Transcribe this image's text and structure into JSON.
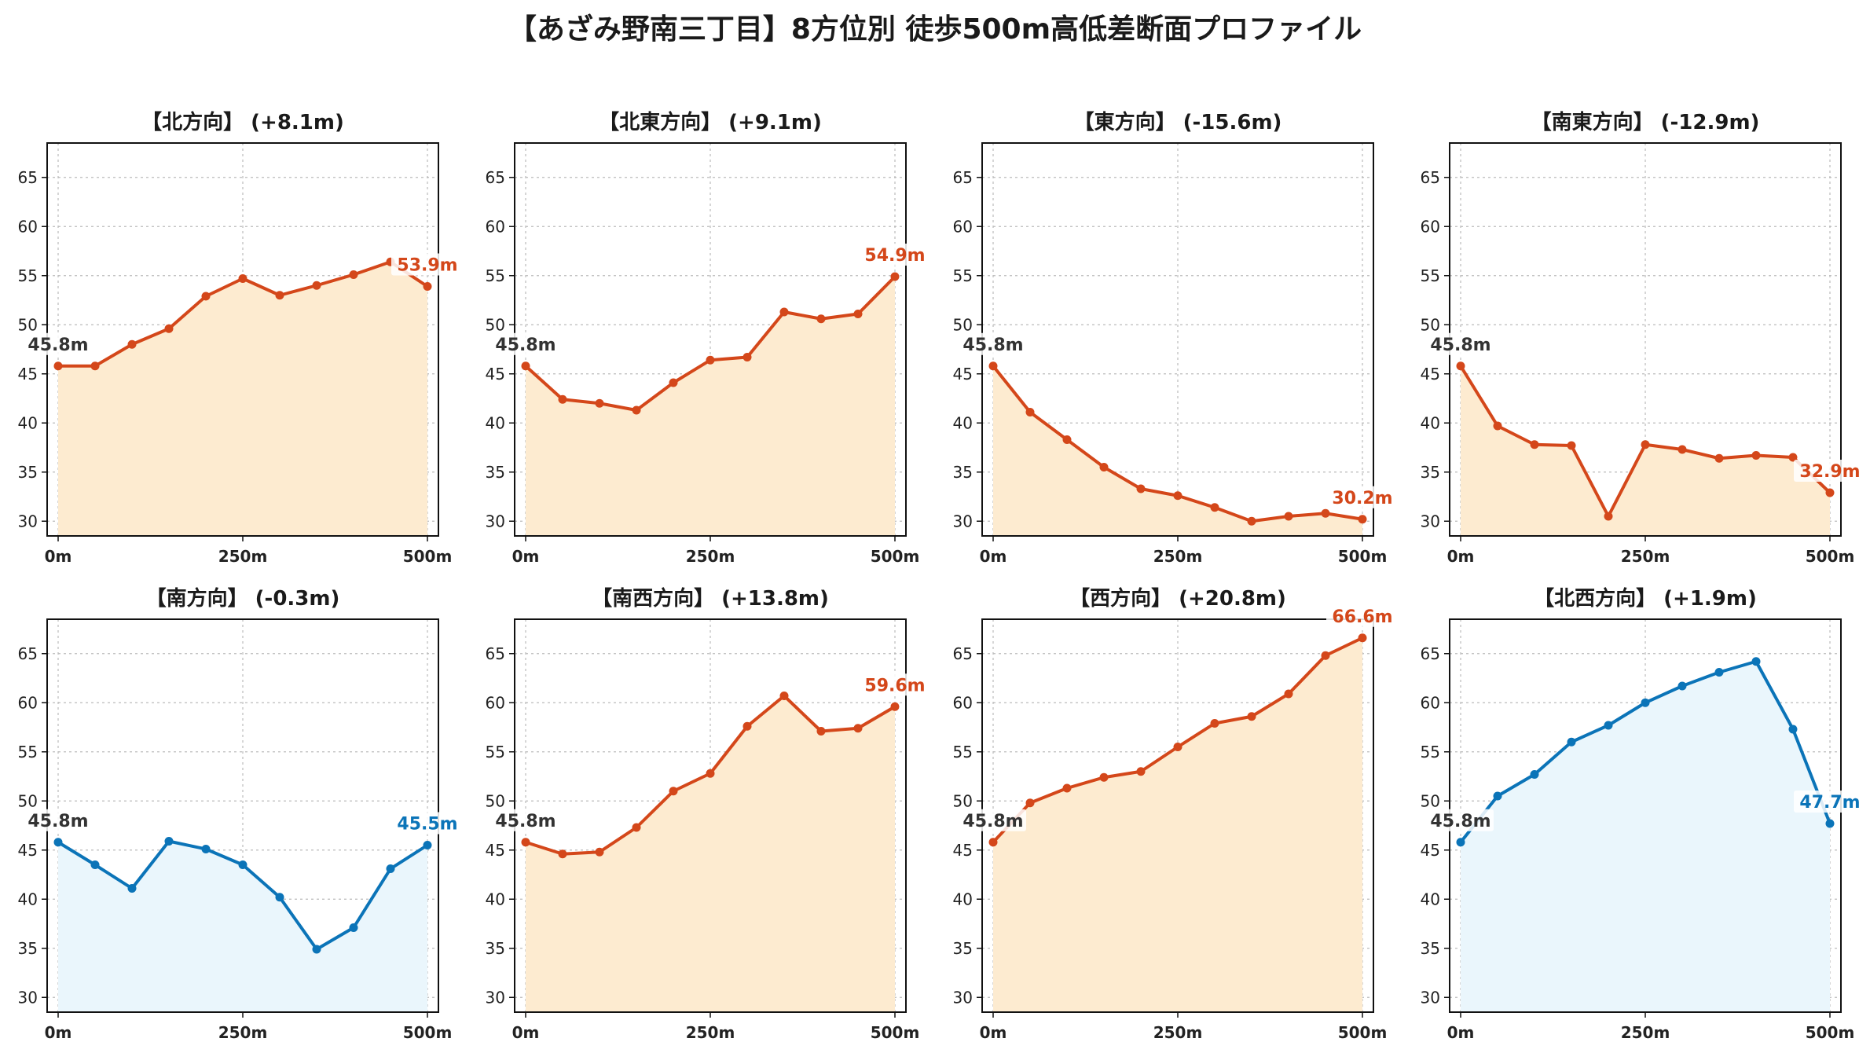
{
  "title": "【あざみ野南三丁目】8方位別 徒歩500m高低差断面プロファイル",
  "colors": {
    "up_line": "#d4471a",
    "up_fill": "#fdebd0",
    "down_line": "#0b74b8",
    "down_fill": "#eaf6fc",
    "start_label": "#333333",
    "grid": "#bbbbbb"
  },
  "chart_data": [
    {
      "type": "area",
      "title": "【北方向】 (+8.1m)",
      "theme": "up",
      "x": [
        0,
        50,
        100,
        150,
        200,
        250,
        300,
        350,
        400,
        450,
        500
      ],
      "y": [
        45.8,
        45.8,
        48.0,
        49.6,
        52.9,
        54.7,
        53.0,
        54.0,
        55.1,
        56.4,
        53.9
      ],
      "start_label": "45.8m",
      "end_label": "53.9m",
      "ylim": [
        28.5,
        68.5
      ],
      "yticks": [
        30,
        35,
        40,
        45,
        50,
        55,
        60,
        65
      ],
      "xticks": [
        0,
        250,
        500
      ],
      "xtick_labels": [
        "0m",
        "250m",
        "500m"
      ],
      "grid": true
    },
    {
      "type": "area",
      "title": "【北東方向】 (+9.1m)",
      "theme": "up",
      "x": [
        0,
        50,
        100,
        150,
        200,
        250,
        300,
        350,
        400,
        450,
        500
      ],
      "y": [
        45.8,
        42.4,
        42.0,
        41.3,
        44.1,
        46.4,
        46.7,
        51.3,
        50.6,
        51.1,
        54.9
      ],
      "start_label": "45.8m",
      "end_label": "54.9m",
      "ylim": [
        28.5,
        68.5
      ],
      "yticks": [
        30,
        35,
        40,
        45,
        50,
        55,
        60,
        65
      ],
      "xticks": [
        0,
        250,
        500
      ],
      "xtick_labels": [
        "0m",
        "250m",
        "500m"
      ],
      "grid": true
    },
    {
      "type": "area",
      "title": "【東方向】 (-15.6m)",
      "theme": "up",
      "x": [
        0,
        50,
        100,
        150,
        200,
        250,
        300,
        350,
        400,
        450,
        500
      ],
      "y": [
        45.8,
        41.1,
        38.3,
        35.5,
        33.3,
        32.6,
        31.4,
        30.0,
        30.5,
        30.8,
        30.2
      ],
      "start_label": "45.8m",
      "end_label": "30.2m",
      "ylim": [
        28.5,
        68.5
      ],
      "yticks": [
        30,
        35,
        40,
        45,
        50,
        55,
        60,
        65
      ],
      "xticks": [
        0,
        250,
        500
      ],
      "xtick_labels": [
        "0m",
        "250m",
        "500m"
      ],
      "grid": true
    },
    {
      "type": "area",
      "title": "【南東方向】 (-12.9m)",
      "theme": "up",
      "x": [
        0,
        50,
        100,
        150,
        200,
        250,
        300,
        350,
        400,
        450,
        500
      ],
      "y": [
        45.8,
        39.7,
        37.8,
        37.7,
        30.5,
        37.8,
        37.3,
        36.4,
        36.7,
        36.5,
        32.9
      ],
      "start_label": "45.8m",
      "end_label": "32.9m",
      "ylim": [
        28.5,
        68.5
      ],
      "yticks": [
        30,
        35,
        40,
        45,
        50,
        55,
        60,
        65
      ],
      "xticks": [
        0,
        250,
        500
      ],
      "xtick_labels": [
        "0m",
        "250m",
        "500m"
      ],
      "grid": true
    },
    {
      "type": "area",
      "title": "【南方向】 (-0.3m)",
      "theme": "down",
      "x": [
        0,
        50,
        100,
        150,
        200,
        250,
        300,
        350,
        400,
        450,
        500
      ],
      "y": [
        45.8,
        43.5,
        41.1,
        45.9,
        45.1,
        43.5,
        40.2,
        34.9,
        37.1,
        43.1,
        45.5
      ],
      "start_label": "45.8m",
      "end_label": "45.5m",
      "ylim": [
        28.5,
        68.5
      ],
      "yticks": [
        30,
        35,
        40,
        45,
        50,
        55,
        60,
        65
      ],
      "xticks": [
        0,
        250,
        500
      ],
      "xtick_labels": [
        "0m",
        "250m",
        "500m"
      ],
      "grid": true
    },
    {
      "type": "area",
      "title": "【南西方向】 (+13.8m)",
      "theme": "up",
      "x": [
        0,
        50,
        100,
        150,
        200,
        250,
        300,
        350,
        400,
        450,
        500
      ],
      "y": [
        45.8,
        44.6,
        44.8,
        47.3,
        51.0,
        52.8,
        57.6,
        60.7,
        57.1,
        57.4,
        59.6
      ],
      "start_label": "45.8m",
      "end_label": "59.6m",
      "ylim": [
        28.5,
        68.5
      ],
      "yticks": [
        30,
        35,
        40,
        45,
        50,
        55,
        60,
        65
      ],
      "xticks": [
        0,
        250,
        500
      ],
      "xtick_labels": [
        "0m",
        "250m",
        "500m"
      ],
      "grid": true
    },
    {
      "type": "area",
      "title": "【西方向】 (+20.8m)",
      "theme": "up",
      "x": [
        0,
        50,
        100,
        150,
        200,
        250,
        300,
        350,
        400,
        450,
        500
      ],
      "y": [
        45.8,
        49.8,
        51.3,
        52.4,
        53.0,
        55.5,
        57.9,
        58.6,
        60.9,
        64.8,
        66.6
      ],
      "start_label": "45.8m",
      "end_label": "66.6m",
      "ylim": [
        28.5,
        68.5
      ],
      "yticks": [
        30,
        35,
        40,
        45,
        50,
        55,
        60,
        65
      ],
      "xticks": [
        0,
        250,
        500
      ],
      "xtick_labels": [
        "0m",
        "250m",
        "500m"
      ],
      "grid": true
    },
    {
      "type": "area",
      "title": "【北西方向】 (+1.9m)",
      "theme": "down",
      "x": [
        0,
        50,
        100,
        150,
        200,
        250,
        300,
        350,
        400,
        450,
        500
      ],
      "y": [
        45.8,
        50.5,
        52.7,
        56.0,
        57.7,
        60.0,
        61.7,
        63.1,
        64.2,
        57.3,
        47.7
      ],
      "start_label": "45.8m",
      "end_label": "47.7m",
      "ylim": [
        28.5,
        68.5
      ],
      "yticks": [
        30,
        35,
        40,
        45,
        50,
        55,
        60,
        65
      ],
      "xticks": [
        0,
        250,
        500
      ],
      "xtick_labels": [
        "0m",
        "250m",
        "500m"
      ],
      "grid": true
    }
  ]
}
